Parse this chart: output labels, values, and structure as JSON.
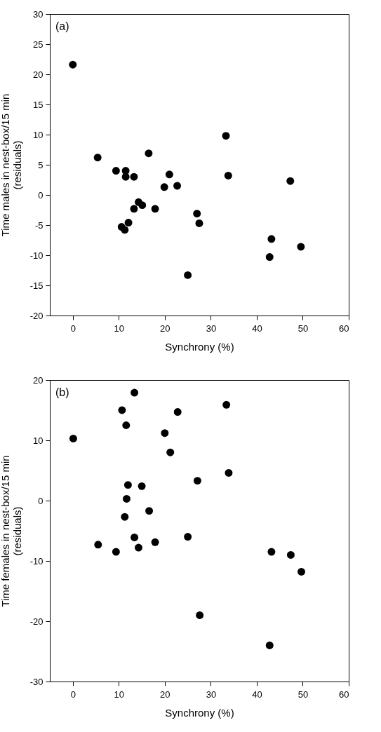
{
  "chart_data": [
    {
      "type": "scatter",
      "xlabel": "Synchrony (%)",
      "ylabel": "Time males in nest-box/15 min\n(residuals)",
      "annotations": [
        "(a)"
      ],
      "marker": "circle",
      "grid": false,
      "xlim": [
        -5,
        60
      ],
      "xticks": [
        0,
        10,
        20,
        30,
        40,
        50,
        60
      ],
      "ylim": [
        -20,
        30
      ],
      "yticks": [
        -20,
        -15,
        -10,
        -5,
        0,
        5,
        10,
        15,
        20,
        25,
        30
      ],
      "series": [
        {
          "color": "#000000",
          "x": [
            0,
            5.4,
            9.4,
            11.5,
            11.5,
            13.3,
            16.5,
            21,
            19.9,
            22.7,
            33.3,
            33.8,
            47.3,
            14.3,
            15.1,
            13.3,
            17.9,
            10.6,
            11.3,
            12.1,
            27,
            27.5,
            25,
            43.2,
            42.8,
            49.6
          ],
          "values": [
            21.6,
            6.2,
            4,
            4,
            3,
            3,
            6.9,
            3.4,
            1.3,
            1.5,
            9.8,
            3.2,
            2.3,
            -1.2,
            -1.7,
            -2.3,
            -2.3,
            -5.3,
            -5.8,
            -4.6,
            -3.1,
            -4.7,
            -13.3,
            -7.3,
            -10.3,
            -8.6
          ]
        }
      ]
    },
    {
      "type": "scatter",
      "xlabel": "Synchrony (%)",
      "ylabel": "Time females in nest-box/15 min\n(residuals)",
      "annotations": [
        "(b)"
      ],
      "marker": "circle",
      "grid": false,
      "xlim": [
        -5,
        60
      ],
      "xticks": [
        0,
        10,
        20,
        30,
        40,
        50,
        60
      ],
      "ylim": [
        -30,
        20
      ],
      "yticks": [
        -30,
        -20,
        -10,
        0,
        10,
        20
      ],
      "series": [
        {
          "color": "#000000",
          "x": [
            0.1,
            10.7,
            11.6,
            13.4,
            20,
            21.2,
            22.8,
            33.4,
            33.9,
            27.1,
            12,
            15,
            11.7,
            16.6,
            11.3,
            13.4,
            17.9,
            25,
            5.5,
            9.4,
            14.3,
            43.2,
            47.4,
            49.7,
            27.6,
            42.8
          ],
          "values": [
            10.3,
            15,
            12.5,
            17.9,
            11.2,
            8,
            14.7,
            15.9,
            4.6,
            3.3,
            2.6,
            2.4,
            0.3,
            -1.7,
            -2.7,
            -6.1,
            -6.9,
            -6,
            -7.3,
            -8.5,
            -7.8,
            -8.5,
            -9,
            -11.8,
            -19,
            -24
          ]
        }
      ]
    }
  ]
}
